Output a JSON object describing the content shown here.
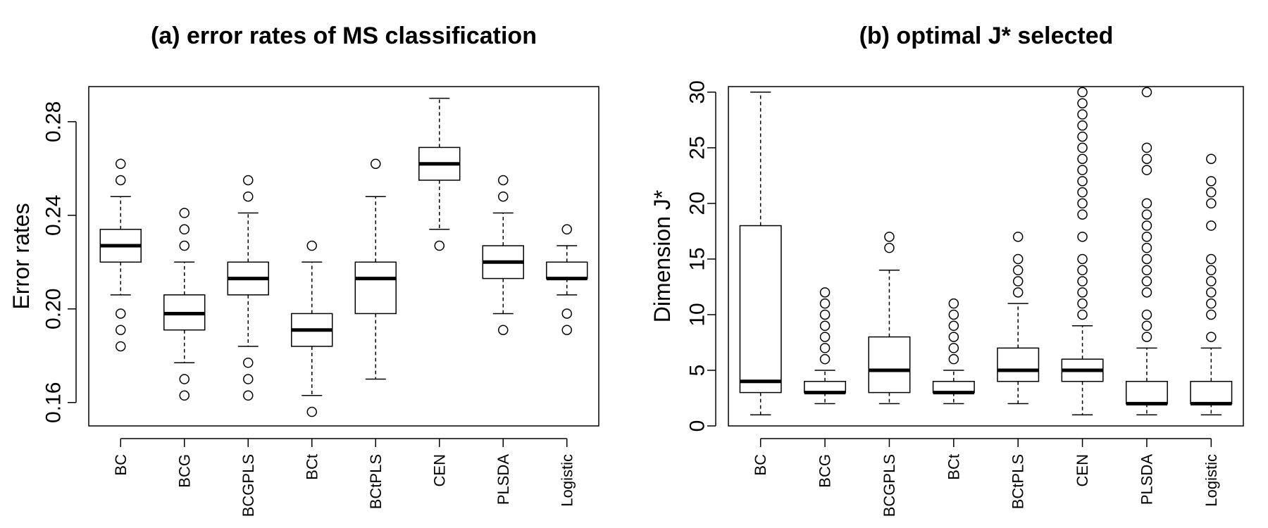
{
  "chart_data": [
    {
      "type": "boxplot",
      "title": "(a) error rates of MS classification",
      "ylabel": "Error rates",
      "xlabel": "",
      "ylim": [
        0.15,
        0.295
      ],
      "yticks": [
        0.16,
        0.2,
        0.24,
        0.28
      ],
      "ytick_labels": [
        "0.16",
        "0.20",
        "0.24",
        "0.28"
      ],
      "grid": false,
      "categories": [
        "BC",
        "BCG",
        "BCGPLS",
        "BCt",
        "BCtPLS",
        "CEN",
        "PLSDA",
        "Logistic"
      ],
      "boxes": [
        {
          "whisker_low": 0.206,
          "q1": 0.22,
          "median": 0.227,
          "q3": 0.234,
          "whisker_high": 0.248,
          "outliers": [
            0.262,
            0.255,
            0.198,
            0.191,
            0.184
          ]
        },
        {
          "whisker_low": 0.177,
          "q1": 0.191,
          "median": 0.198,
          "q3": 0.206,
          "whisker_high": 0.22,
          "outliers": [
            0.241,
            0.234,
            0.227,
            0.17,
            0.163
          ]
        },
        {
          "whisker_low": 0.184,
          "q1": 0.206,
          "median": 0.213,
          "q3": 0.22,
          "whisker_high": 0.241,
          "outliers": [
            0.255,
            0.248,
            0.177,
            0.17,
            0.163
          ]
        },
        {
          "whisker_low": 0.163,
          "q1": 0.184,
          "median": 0.191,
          "q3": 0.198,
          "whisker_high": 0.22,
          "outliers": [
            0.227,
            0.156
          ]
        },
        {
          "whisker_low": 0.17,
          "q1": 0.198,
          "median": 0.213,
          "q3": 0.22,
          "whisker_high": 0.248,
          "outliers": [
            0.262
          ]
        },
        {
          "whisker_low": 0.234,
          "q1": 0.255,
          "median": 0.262,
          "q3": 0.269,
          "whisker_high": 0.29,
          "outliers": [
            0.227
          ]
        },
        {
          "whisker_low": 0.198,
          "q1": 0.213,
          "median": 0.22,
          "q3": 0.227,
          "whisker_high": 0.241,
          "outliers": [
            0.255,
            0.248,
            0.191
          ]
        },
        {
          "whisker_low": 0.206,
          "q1": 0.213,
          "median": 0.213,
          "q3": 0.22,
          "whisker_high": 0.227,
          "outliers": [
            0.234,
            0.198,
            0.191
          ]
        }
      ]
    },
    {
      "type": "boxplot",
      "title": "(b) optimal J* selected",
      "ylabel": "Dimension J*",
      "xlabel": "",
      "ylim": [
        0,
        30.5
      ],
      "yticks": [
        0,
        5,
        10,
        15,
        20,
        25,
        30
      ],
      "ytick_labels": [
        "0",
        "5",
        "10",
        "15",
        "20",
        "25",
        "30"
      ],
      "grid": false,
      "categories": [
        "BC",
        "BCG",
        "BCGPLS",
        "BCt",
        "BCtPLS",
        "CEN",
        "PLSDA",
        "Logistic"
      ],
      "boxes": [
        {
          "whisker_low": 1,
          "q1": 3,
          "median": 4,
          "q3": 18,
          "whisker_high": 30,
          "outliers": []
        },
        {
          "whisker_low": 2,
          "q1": 3,
          "median": 3,
          "q3": 4,
          "whisker_high": 5,
          "outliers": [
            6,
            7,
            8,
            9,
            10,
            11,
            12
          ]
        },
        {
          "whisker_low": 2,
          "q1": 3,
          "median": 5,
          "q3": 8,
          "whisker_high": 14,
          "outliers": [
            16,
            17
          ]
        },
        {
          "whisker_low": 2,
          "q1": 3,
          "median": 3,
          "q3": 4,
          "whisker_high": 5,
          "outliers": [
            6,
            7,
            8,
            9,
            10,
            11
          ]
        },
        {
          "whisker_low": 2,
          "q1": 4,
          "median": 5,
          "q3": 7,
          "whisker_high": 11,
          "outliers": [
            12,
            13,
            14,
            15,
            17
          ]
        },
        {
          "whisker_low": 1,
          "q1": 4,
          "median": 5,
          "q3": 6,
          "whisker_high": 9,
          "outliers": [
            10,
            11,
            12,
            13,
            14,
            15,
            17,
            19,
            20,
            21,
            22,
            23,
            24,
            25,
            26,
            27,
            28,
            29,
            30
          ]
        },
        {
          "whisker_low": 1,
          "q1": 2,
          "median": 2,
          "q3": 4,
          "whisker_high": 7,
          "outliers": [
            8,
            9,
            10,
            12,
            13,
            14,
            15,
            16,
            17,
            18,
            19,
            20,
            23,
            24,
            25,
            30
          ]
        },
        {
          "whisker_low": 1,
          "q1": 2,
          "median": 2,
          "q3": 4,
          "whisker_high": 7,
          "outliers": [
            8,
            10,
            11,
            12,
            13,
            14,
            15,
            18,
            20,
            21,
            22,
            24
          ]
        }
      ]
    }
  ]
}
